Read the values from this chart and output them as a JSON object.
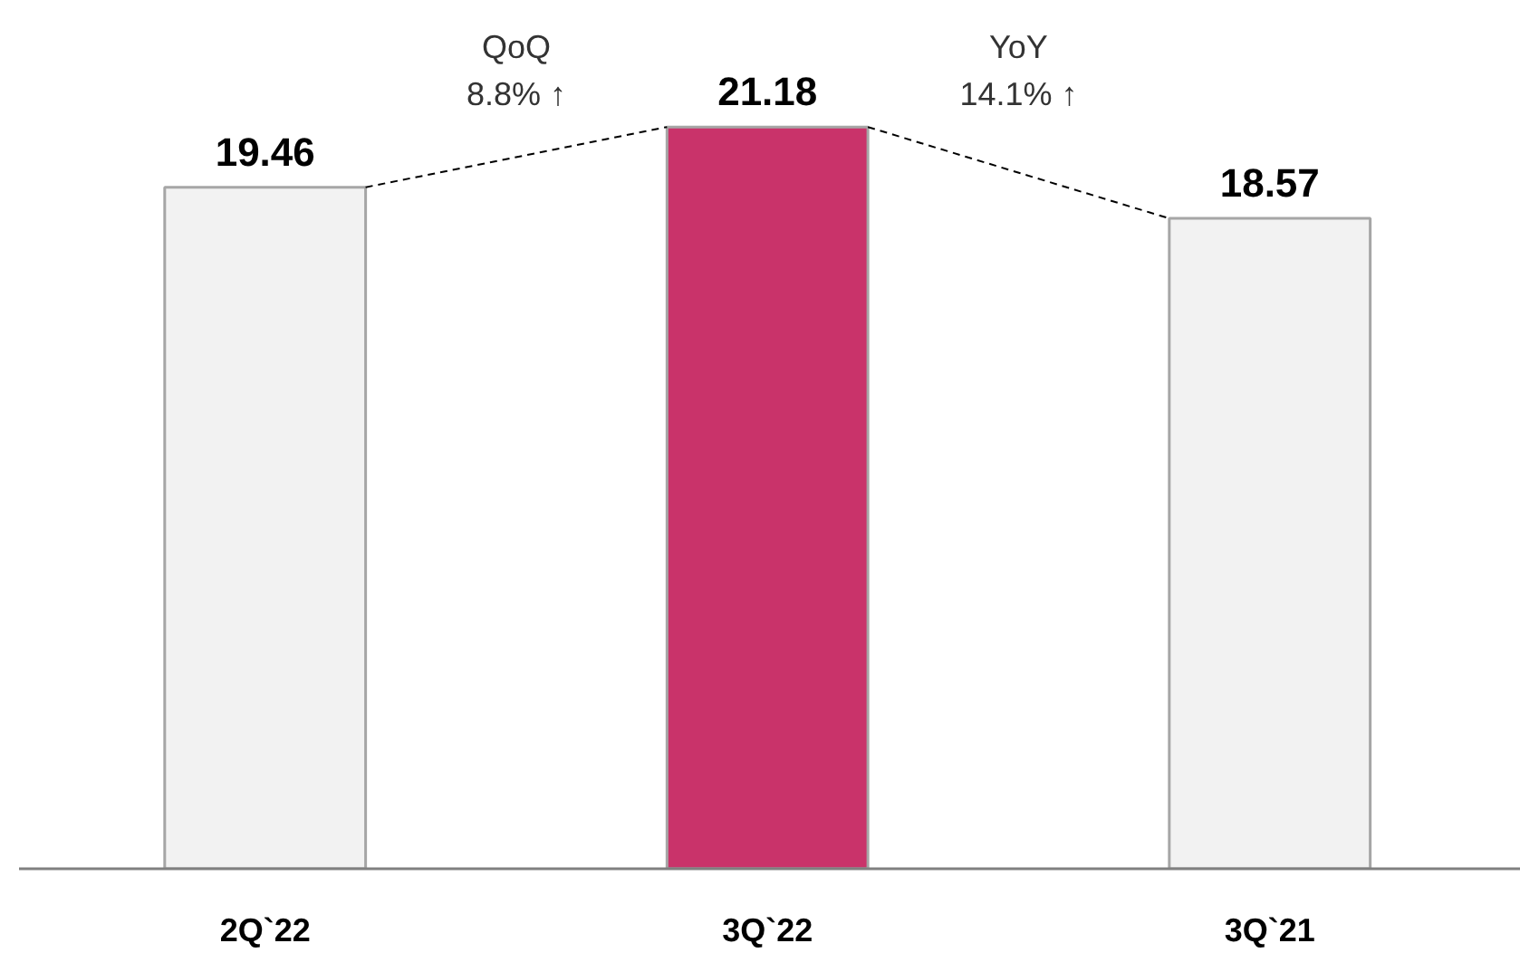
{
  "chart_data": {
    "type": "bar",
    "categories": [
      "2Q`22",
      "3Q`22",
      "3Q`21"
    ],
    "values": [
      19.46,
      21.18,
      18.57
    ],
    "colors": [
      "#f2f2f2",
      "#c9336a",
      "#f2f2f2"
    ],
    "data_labels": true,
    "annotations": [
      "QoQ\n8.8% ↑",
      "YoY\n14.1% ↑"
    ]
  }
}
